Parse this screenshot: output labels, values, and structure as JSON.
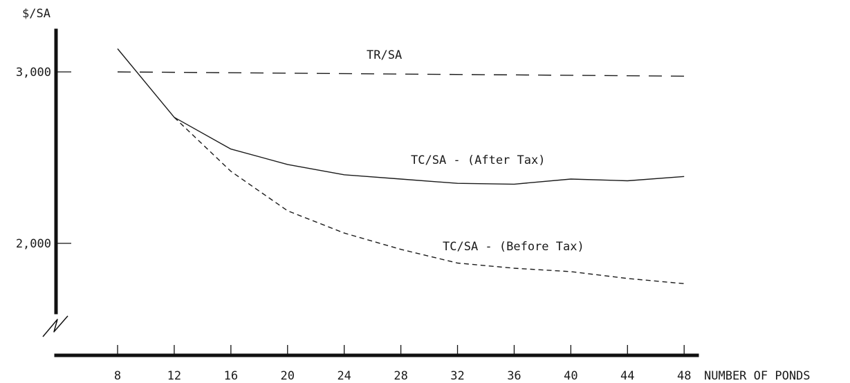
{
  "chart_data": {
    "type": "line",
    "ylabel": "$/SA",
    "xlabel": "NUMBER OF PONDS",
    "x_ticks": [
      8,
      12,
      16,
      20,
      24,
      28,
      32,
      36,
      40,
      44,
      48
    ],
    "x_tick_labels": [
      "8",
      "12",
      "16",
      "20",
      "24",
      "28",
      "32",
      "36",
      "40",
      "44",
      "48"
    ],
    "y_ticks": [
      2000,
      3000
    ],
    "y_tick_labels": [
      "2,000",
      "3,000"
    ],
    "xlim": [
      4,
      50
    ],
    "ylim": [
      1700,
      3200
    ],
    "y_axis_break": true,
    "grid": false,
    "legend": "none",
    "series": [
      {
        "name": "TR/SA",
        "style": "dashed-long",
        "x": [
          8,
          48
        ],
        "y": [
          3000,
          2975
        ]
      },
      {
        "name": "TC/SA - (After Tax)",
        "style": "solid",
        "x": [
          8,
          12,
          16,
          20,
          24,
          28,
          32,
          36,
          40,
          44,
          48
        ],
        "y": [
          3135,
          2735,
          2550,
          2460,
          2400,
          2375,
          2350,
          2345,
          2375,
          2365,
          2390
        ]
      },
      {
        "name": "TC/SA - (Before Tax)",
        "style": "dashed-short",
        "x": [
          12,
          16,
          20,
          24,
          28,
          32,
          36,
          40,
          44,
          48
        ],
        "y": [
          2735,
          2420,
          2190,
          2060,
          1965,
          1885,
          1855,
          1835,
          1795,
          1765
        ]
      }
    ]
  }
}
